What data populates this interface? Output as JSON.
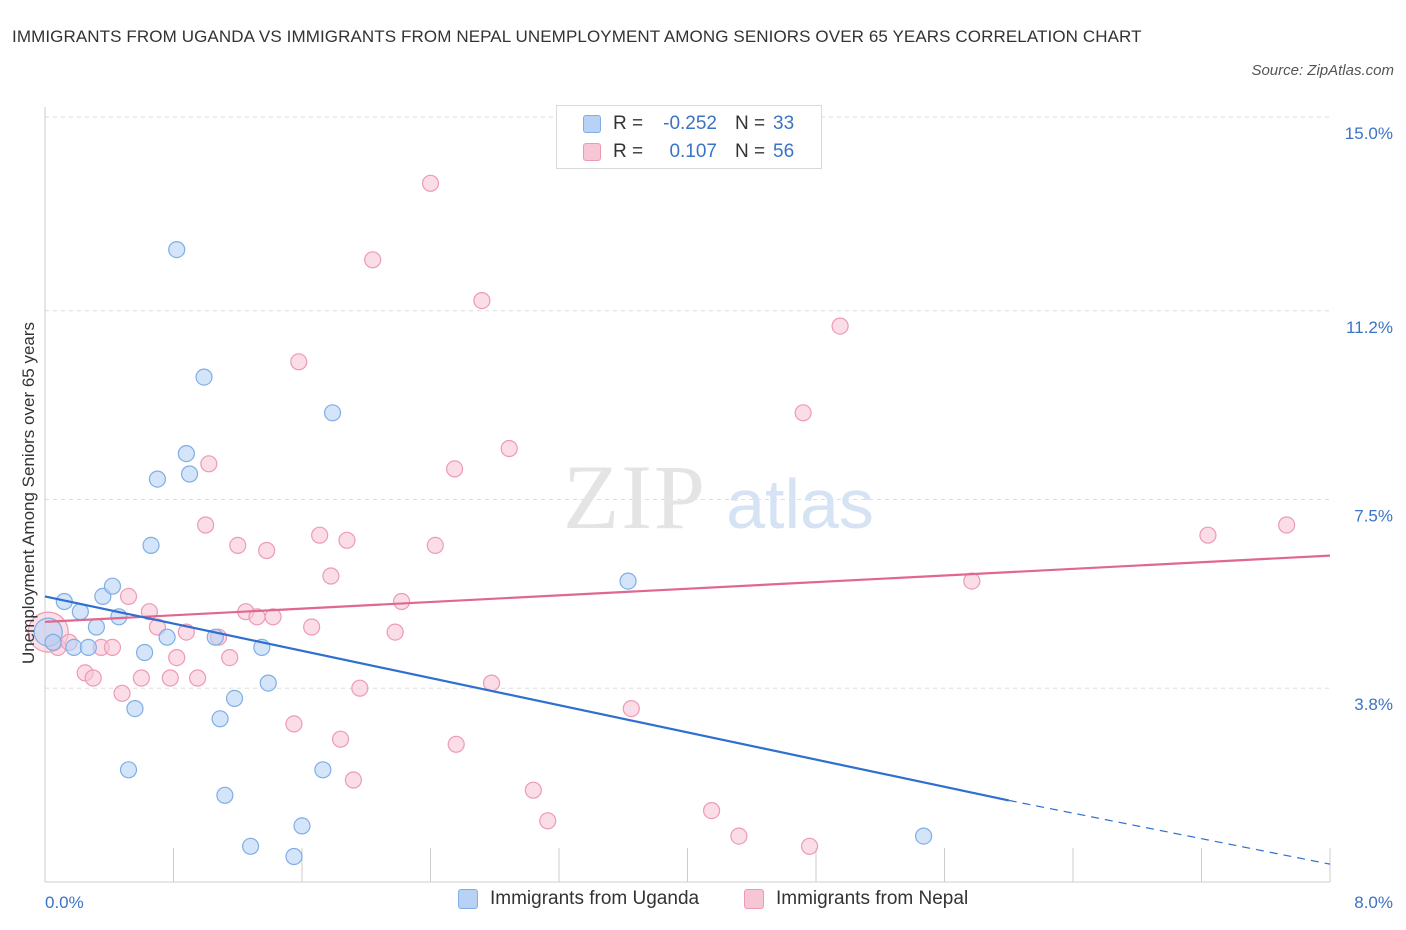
{
  "title": "IMMIGRANTS FROM UGANDA VS IMMIGRANTS FROM NEPAL UNEMPLOYMENT AMONG SENIORS OVER 65 YEARS CORRELATION CHART",
  "source": "Source: ZipAtlas.com",
  "watermark": {
    "zip": "ZIP",
    "atlas": "atlas"
  },
  "colors": {
    "uganda_fill": "#b7d2f5",
    "uganda_stroke": "#7faee6",
    "uganda_line": "#2f6fcf",
    "nepal_fill": "#f7c6d5",
    "nepal_stroke": "#ee9ab5",
    "nepal_line": "#e0678f",
    "tick_label": "#3b73c6"
  },
  "legend": {
    "rows": [
      {
        "r_label": "R =",
        "r_value": "-0.252",
        "n_label": "N =",
        "n_value": "33"
      },
      {
        "r_label": "R =",
        "r_value": "0.107",
        "n_label": "N =",
        "n_value": "56"
      }
    ],
    "series": [
      "Immigrants from Uganda",
      "Immigrants from Nepal"
    ]
  },
  "chart_data": {
    "type": "scatter",
    "title": "IMMIGRANTS FROM UGANDA VS IMMIGRANTS FROM NEPAL UNEMPLOYMENT AMONG SENIORS OVER 65 YEARS CORRELATION CHART",
    "xlabel": "",
    "ylabel": "Unemployment Among Seniors over 65 years",
    "xlim": [
      0,
      8
    ],
    "ylim": [
      0,
      15
    ],
    "x_tick_labels": [
      "0.0%",
      "8.0%"
    ],
    "y_ticks": [
      3.8,
      7.5,
      11.2,
      15.0
    ],
    "y_tick_labels": [
      "3.8%",
      "7.5%",
      "11.2%",
      "15.0%"
    ],
    "grid": true,
    "legend_position": "top-center",
    "series": [
      {
        "name": "Immigrants from Uganda",
        "r": -0.252,
        "n": 33,
        "trend": {
          "x": [
            0,
            6.0
          ],
          "y": [
            5.6,
            1.6
          ],
          "dashed_to": [
            8.0,
            0.35
          ]
        },
        "points": [
          [
            0.02,
            4.9
          ],
          [
            0.05,
            4.7
          ],
          [
            0.12,
            5.5
          ],
          [
            0.18,
            4.6
          ],
          [
            0.22,
            5.3
          ],
          [
            0.27,
            4.6
          ],
          [
            0.32,
            5.0
          ],
          [
            0.36,
            5.6
          ],
          [
            0.42,
            5.8
          ],
          [
            0.46,
            5.2
          ],
          [
            0.56,
            3.4
          ],
          [
            0.52,
            2.2
          ],
          [
            0.62,
            4.5
          ],
          [
            0.66,
            6.6
          ],
          [
            0.7,
            7.9
          ],
          [
            0.76,
            4.8
          ],
          [
            0.82,
            12.4
          ],
          [
            0.88,
            8.4
          ],
          [
            0.9,
            8.0
          ],
          [
            0.99,
            9.9
          ],
          [
            1.06,
            4.8
          ],
          [
            1.09,
            3.2
          ],
          [
            1.12,
            1.7
          ],
          [
            1.18,
            3.6
          ],
          [
            1.28,
            0.7
          ],
          [
            1.35,
            4.6
          ],
          [
            1.39,
            3.9
          ],
          [
            1.55,
            0.5
          ],
          [
            1.6,
            1.1
          ],
          [
            1.73,
            2.2
          ],
          [
            1.79,
            9.2
          ],
          [
            3.63,
            5.9
          ],
          [
            5.47,
            0.9
          ]
        ]
      },
      {
        "name": "Immigrants from Nepal",
        "r": 0.107,
        "n": 56,
        "trend": {
          "x": [
            0,
            8.0
          ],
          "y": [
            5.1,
            6.4
          ]
        },
        "points": [
          [
            0.02,
            4.9
          ],
          [
            0.08,
            4.6
          ],
          [
            0.15,
            4.7
          ],
          [
            0.25,
            4.1
          ],
          [
            0.3,
            4.0
          ],
          [
            0.35,
            4.6
          ],
          [
            0.42,
            4.6
          ],
          [
            0.48,
            3.7
          ],
          [
            0.52,
            5.6
          ],
          [
            0.6,
            4.0
          ],
          [
            0.65,
            5.3
          ],
          [
            0.7,
            5.0
          ],
          [
            0.78,
            4.0
          ],
          [
            0.82,
            4.4
          ],
          [
            0.88,
            4.9
          ],
          [
            0.95,
            4.0
          ],
          [
            1.0,
            7.0
          ],
          [
            1.02,
            8.2
          ],
          [
            1.08,
            4.8
          ],
          [
            1.15,
            4.4
          ],
          [
            1.2,
            6.6
          ],
          [
            1.25,
            5.3
          ],
          [
            1.32,
            5.2
          ],
          [
            1.38,
            6.5
          ],
          [
            1.42,
            5.2
          ],
          [
            1.55,
            3.1
          ],
          [
            1.58,
            10.2
          ],
          [
            1.66,
            5.0
          ],
          [
            1.71,
            6.8
          ],
          [
            1.78,
            6.0
          ],
          [
            1.84,
            2.8
          ],
          [
            1.88,
            6.7
          ],
          [
            1.92,
            2.0
          ],
          [
            1.96,
            3.8
          ],
          [
            2.04,
            12.2
          ],
          [
            2.18,
            4.9
          ],
          [
            2.22,
            5.5
          ],
          [
            2.4,
            13.7
          ],
          [
            2.43,
            6.6
          ],
          [
            2.55,
            8.1
          ],
          [
            2.56,
            2.7
          ],
          [
            2.72,
            11.4
          ],
          [
            2.78,
            3.9
          ],
          [
            2.89,
            8.5
          ],
          [
            3.04,
            1.8
          ],
          [
            3.13,
            1.2
          ],
          [
            3.65,
            3.4
          ],
          [
            4.15,
            1.4
          ],
          [
            4.32,
            0.9
          ],
          [
            4.72,
            9.2
          ],
          [
            4.76,
            0.7
          ],
          [
            4.95,
            10.9
          ],
          [
            5.77,
            5.9
          ],
          [
            7.24,
            6.8
          ],
          [
            7.73,
            7.0
          ],
          [
            0.05,
            4.7
          ]
        ]
      }
    ]
  }
}
